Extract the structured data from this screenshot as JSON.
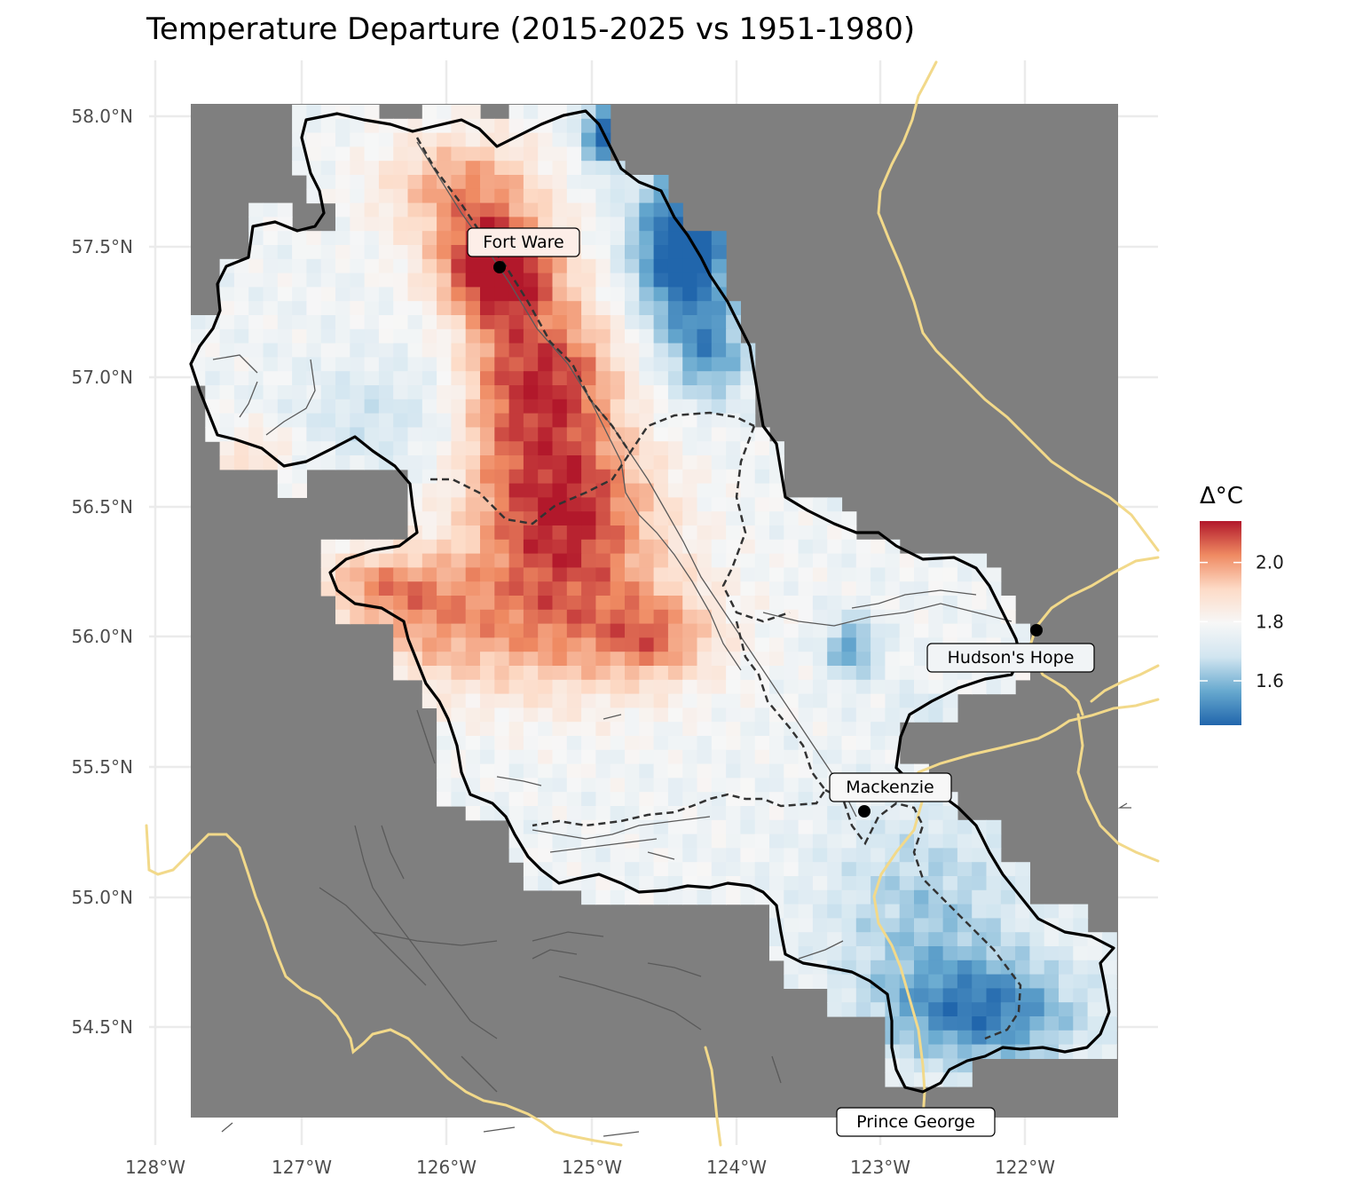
{
  "title": "Temperature Departure (2015-2025 vs 1951-1980)",
  "legend": {
    "title": "Δ°C",
    "ticks": [
      "2.0",
      "1.8",
      "1.6"
    ],
    "scale": {
      "min": 1.45,
      "max": 2.14,
      "colors": [
        "#2166ac",
        "#67a9cf",
        "#d1e5f0",
        "#f7f7f7",
        "#fddbc7",
        "#ef8a62",
        "#b2182b"
      ]
    }
  },
  "axes": {
    "x_ticks": [
      "128°W",
      "127°W",
      "126°W",
      "125°W",
      "124°W",
      "123°W",
      "122°W"
    ],
    "y_ticks": [
      "58.0°N",
      "57.5°N",
      "57.0°N",
      "56.5°N",
      "56.0°N",
      "55.5°N",
      "55.0°N",
      "54.5°N"
    ]
  },
  "cities": [
    {
      "name": "Fort Ware",
      "lon": -125.63,
      "lat": 57.42
    },
    {
      "name": "Hudson's Hope",
      "lon": -121.91,
      "lat": 56.03
    },
    {
      "name": "Mackenzie",
      "lon": -123.09,
      "lat": 55.33
    },
    {
      "name": "Prince George",
      "lon": -122.75,
      "lat": 53.92
    }
  ],
  "colors": {
    "background_mask": "#7f7f7f",
    "watershed_boundary": "#000000",
    "sub_basin_boundary": "#333333",
    "roads": "#f2d98a",
    "grid": "#ebebeb"
  }
}
